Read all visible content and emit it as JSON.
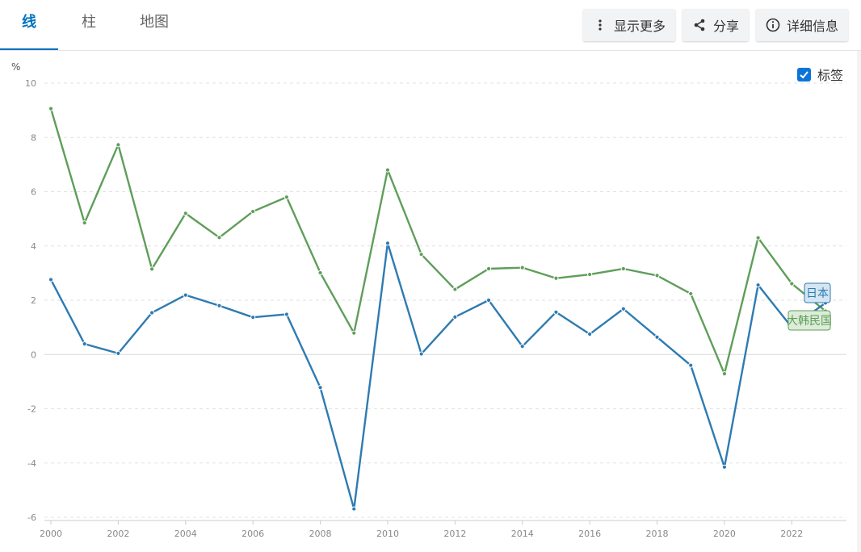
{
  "tabs": [
    {
      "label": "线",
      "active": true
    },
    {
      "label": "柱",
      "active": false
    },
    {
      "label": "地图",
      "active": false
    }
  ],
  "actions": {
    "more": {
      "label": "显示更多",
      "icon": "more-vertical-icon"
    },
    "share": {
      "label": "分享",
      "icon": "share-icon"
    },
    "details": {
      "label": "详细信息",
      "icon": "info-icon"
    }
  },
  "labels_toggle": {
    "label": "标签",
    "checked": true
  },
  "colors": {
    "japan": "#2e7bb1",
    "korea": "#5f9e5a",
    "accent": "#0071bc"
  },
  "chart_data": {
    "type": "line",
    "unit": "%",
    "xlim": [
      2000,
      2023
    ],
    "ylim": [
      -6,
      10
    ],
    "x_ticks": [
      2000,
      2002,
      2004,
      2006,
      2008,
      2010,
      2012,
      2014,
      2016,
      2018,
      2020,
      2022
    ],
    "y_ticks": [
      10,
      8,
      6,
      4,
      2,
      0,
      -2,
      -4,
      -6
    ],
    "grid": true,
    "series": [
      {
        "name": "大韩民国",
        "color": "#5f9e5a",
        "label_bg": "#dcecd9",
        "x": [
          2000,
          2001,
          2002,
          2003,
          2004,
          2005,
          2006,
          2007,
          2008,
          2009,
          2010,
          2011,
          2012,
          2013,
          2014,
          2015,
          2016,
          2017,
          2018,
          2019,
          2020,
          2021,
          2022,
          2023
        ],
        "values": [
          9.06,
          4.85,
          7.73,
          3.15,
          5.2,
          4.31,
          5.27,
          5.8,
          3.01,
          0.79,
          6.8,
          3.69,
          2.4,
          3.16,
          3.2,
          2.81,
          2.95,
          3.16,
          2.91,
          2.24,
          -0.71,
          4.3,
          2.61,
          1.6
        ]
      },
      {
        "name": "日本",
        "color": "#2e7bb1",
        "label_bg": "#d5e6f3",
        "x": [
          2000,
          2001,
          2002,
          2003,
          2004,
          2005,
          2006,
          2007,
          2008,
          2009,
          2010,
          2011,
          2012,
          2013,
          2014,
          2015,
          2016,
          2017,
          2018,
          2019,
          2020,
          2021,
          2022,
          2023
        ],
        "values": [
          2.76,
          0.39,
          0.04,
          1.54,
          2.19,
          1.8,
          1.37,
          1.48,
          -1.22,
          -5.69,
          4.1,
          0.02,
          1.38,
          2.0,
          0.3,
          1.56,
          0.75,
          1.68,
          0.64,
          -0.4,
          -4.15,
          2.56,
          1.0,
          1.9
        ]
      }
    ]
  }
}
